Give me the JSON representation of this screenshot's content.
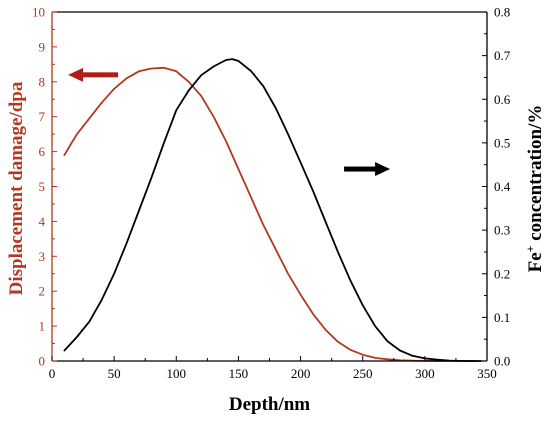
{
  "colors": {
    "left_series": "#b5371f",
    "right_series": "#000000",
    "left_arrow": "#b01e14",
    "right_arrow": "#000000",
    "left_axis": "#b5371f",
    "frame": "#000000"
  },
  "chart_data": {
    "type": "line",
    "xlabel": "Depth/nm",
    "ylabel_left": "Displacement damage/dpa",
    "ylabel_right_parts": {
      "prefix": "Fe",
      "sup": "+",
      "suffix": " concentration/%"
    },
    "xlim": [
      0,
      350
    ],
    "ylim_left": [
      0,
      10
    ],
    "ylim_right": [
      0,
      0.8
    ],
    "x_ticks": [
      0,
      50,
      100,
      150,
      200,
      250,
      300,
      350
    ],
    "y_left_ticks": [
      0,
      1,
      2,
      3,
      4,
      5,
      6,
      7,
      8,
      9,
      10
    ],
    "y_right_ticks": [
      "0.0",
      "0.1",
      "0.2",
      "0.3",
      "0.4",
      "0.5",
      "0.6",
      "0.7",
      "0.8"
    ],
    "series": [
      {
        "axis": "left",
        "x": [
          10,
          15,
          20,
          30,
          40,
          50,
          60,
          70,
          80,
          90,
          100,
          110,
          120,
          130,
          140,
          150,
          160,
          170,
          180,
          190,
          200,
          210,
          220,
          230,
          240,
          250,
          260,
          270,
          280,
          290,
          300,
          310,
          320,
          330,
          340
        ],
        "values": [
          5.9,
          6.2,
          6.5,
          6.95,
          7.4,
          7.8,
          8.1,
          8.3,
          8.38,
          8.4,
          8.3,
          8.0,
          7.6,
          7.0,
          6.3,
          5.5,
          4.7,
          3.9,
          3.2,
          2.5,
          1.9,
          1.35,
          0.9,
          0.55,
          0.32,
          0.18,
          0.09,
          0.05,
          0.02,
          0.01,
          0.005,
          0,
          0,
          0,
          0
        ]
      },
      {
        "axis": "right",
        "x": [
          10,
          20,
          30,
          40,
          50,
          60,
          70,
          80,
          90,
          100,
          110,
          120,
          130,
          140,
          145,
          150,
          160,
          170,
          180,
          190,
          200,
          210,
          220,
          230,
          240,
          250,
          260,
          270,
          280,
          290,
          300,
          310,
          320,
          330,
          340,
          345
        ],
        "values": [
          0.024,
          0.055,
          0.09,
          0.14,
          0.2,
          0.27,
          0.345,
          0.42,
          0.5,
          0.575,
          0.62,
          0.655,
          0.675,
          0.69,
          0.692,
          0.688,
          0.665,
          0.63,
          0.58,
          0.52,
          0.455,
          0.39,
          0.32,
          0.25,
          0.185,
          0.128,
          0.08,
          0.045,
          0.024,
          0.012,
          0.006,
          0.003,
          0.001,
          0,
          0,
          0
        ]
      }
    ],
    "annotations": [
      {
        "type": "arrow",
        "direction": "left",
        "near_axis": "left",
        "x_data": 25,
        "y_left": 8.2
      },
      {
        "type": "arrow",
        "direction": "right",
        "near_axis": "right",
        "x_data": 235,
        "y_left": 5.5
      }
    ]
  }
}
